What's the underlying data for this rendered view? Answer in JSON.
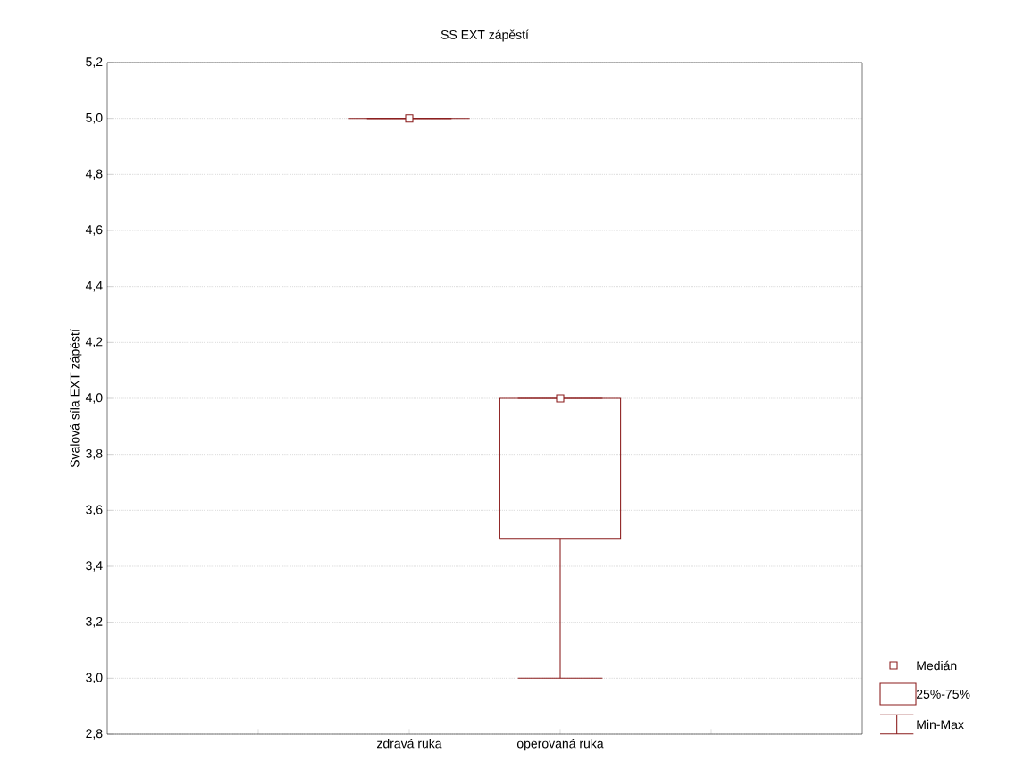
{
  "chart_data": {
    "type": "box",
    "title": "SS EXT zápěstí",
    "ylabel": "Svalová síla EXT zápěstí",
    "categories": [
      "zdravá ruka",
      "operovaná ruka"
    ],
    "boxes": [
      {
        "low": 5,
        "q1": 5,
        "median": 5,
        "q3": 5,
        "high": 5
      },
      {
        "low": 3,
        "q1": 3.5,
        "median": 4,
        "q3": 4,
        "high": 4
      }
    ],
    "color": "#8b1c1c",
    "ylim": [
      2.8,
      5.2
    ],
    "yticks": [
      {
        "value": 2.8,
        "label": "2,8"
      },
      {
        "value": 3.0,
        "label": "3,0"
      },
      {
        "value": 3.2,
        "label": "3,2"
      },
      {
        "value": 3.4,
        "label": "3,4"
      },
      {
        "value": 3.6,
        "label": "3,6"
      },
      {
        "value": 3.8,
        "label": "3,8"
      },
      {
        "value": 4.0,
        "label": "4,0"
      },
      {
        "value": 4.2,
        "label": "4,2"
      },
      {
        "value": 4.4,
        "label": "4,4"
      },
      {
        "value": 4.6,
        "label": "4,6"
      },
      {
        "value": 4.8,
        "label": "4,8"
      },
      {
        "value": 5.0,
        "label": "5,0"
      },
      {
        "value": 5.2,
        "label": "5,2"
      }
    ],
    "grid": "y",
    "annotations": [
      "Medián",
      "25%-75%",
      "Min-Max"
    ]
  }
}
